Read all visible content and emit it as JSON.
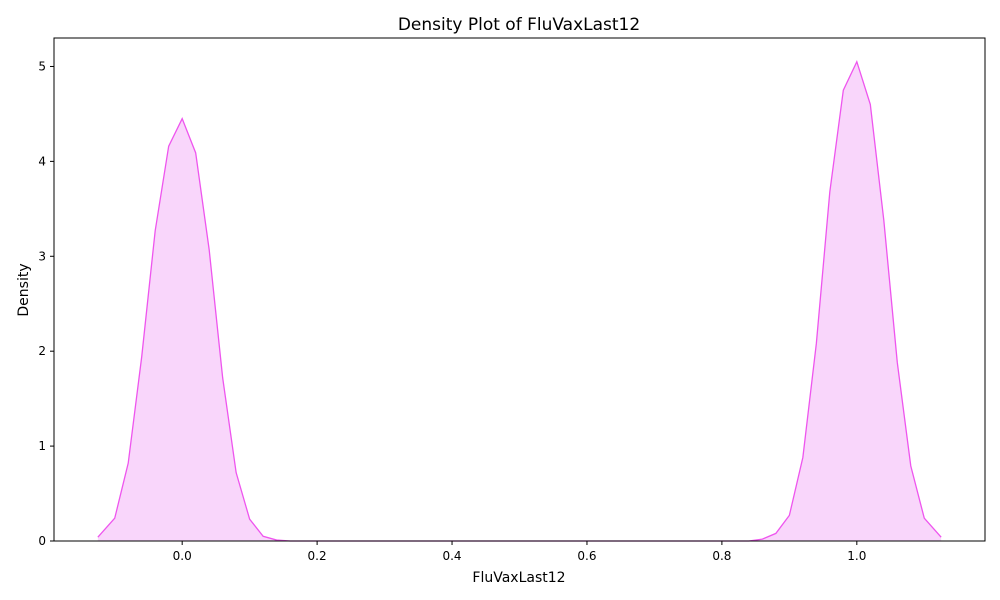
{
  "chart_data": {
    "type": "area",
    "title": "Density Plot of FluVaxLast12",
    "xlabel": "FluVaxLast12",
    "ylabel": "Density",
    "xlim": [
      -0.19,
      1.19
    ],
    "ylim": [
      0,
      5.3
    ],
    "xticks": [
      0.0,
      0.2,
      0.4,
      0.6,
      0.8,
      1.0
    ],
    "xtick_labels": [
      "0.0",
      "0.2",
      "0.4",
      "0.6",
      "0.8",
      "1.0"
    ],
    "yticks": [
      0,
      1,
      2,
      3,
      4,
      5
    ],
    "ytick_labels": [
      "0",
      "1",
      "2",
      "3",
      "4",
      "5"
    ],
    "grid": false,
    "legend": "none",
    "colors": {
      "line": "#ee55ee",
      "fill": "#f9d6fb"
    },
    "series": [
      {
        "x": [
          -0.125,
          -0.1,
          -0.08,
          -0.06,
          -0.04,
          -0.02,
          0.0,
          0.02,
          0.04,
          0.06,
          0.08,
          0.1,
          0.12,
          0.14,
          0.16,
          0.2,
          0.3,
          0.4,
          0.5,
          0.6,
          0.7,
          0.8,
          0.84,
          0.86,
          0.88,
          0.9,
          0.92,
          0.94,
          0.96,
          0.98,
          1.0,
          1.02,
          1.04,
          1.06,
          1.08,
          1.1,
          1.125
        ],
        "y": [
          0.04,
          0.24,
          0.82,
          1.94,
          3.27,
          4.16,
          4.45,
          4.09,
          3.07,
          1.72,
          0.72,
          0.23,
          0.05,
          0.01,
          0.0,
          0.0,
          0.0,
          0.0,
          0.0,
          0.0,
          0.0,
          0.0,
          0.0,
          0.02,
          0.08,
          0.27,
          0.88,
          2.08,
          3.68,
          4.75,
          5.05,
          4.6,
          3.38,
          1.88,
          0.79,
          0.24,
          0.04
        ]
      }
    ]
  }
}
